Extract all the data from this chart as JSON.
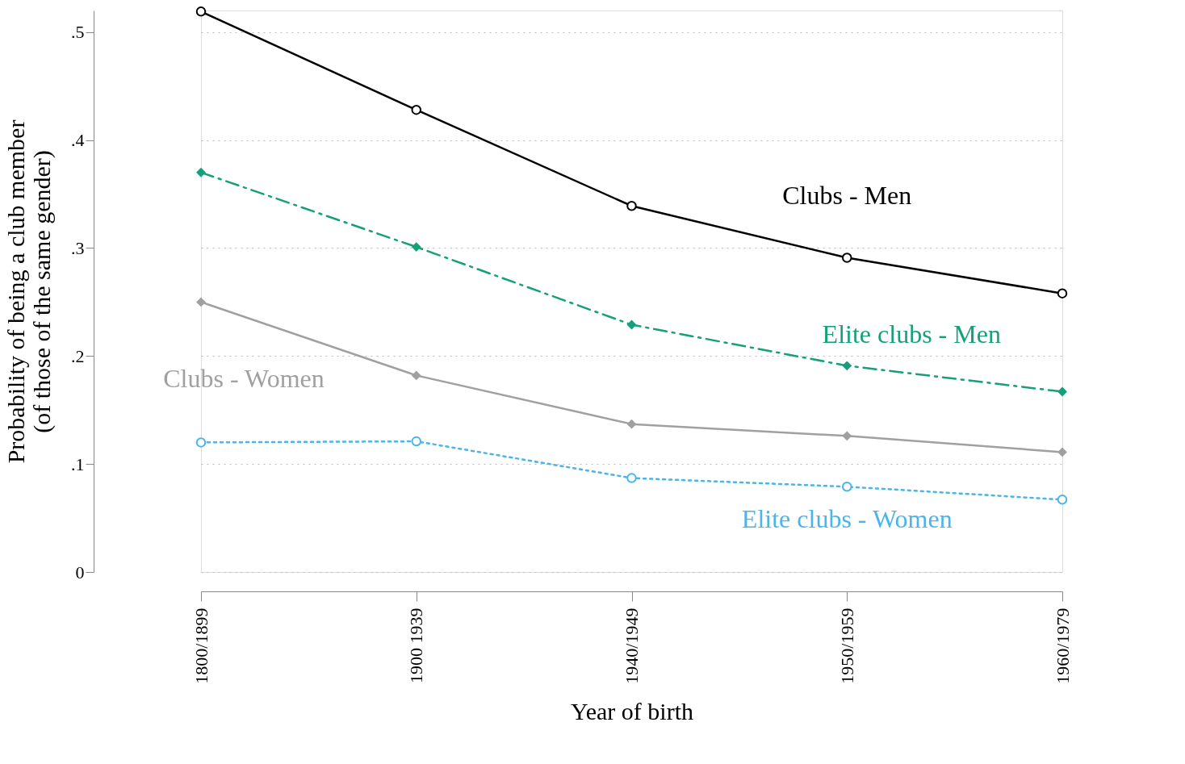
{
  "chart_data": {
    "type": "line",
    "xlabel": "Year of birth",
    "ylabel": "Probability of being a club member\n(of those of the same gender)",
    "categories": [
      "1800/1899",
      "1900 1939",
      "1940/1949",
      "1950/1959",
      "1960/1979"
    ],
    "series": [
      {
        "name": "Clubs - Men",
        "color": "#000000",
        "marker": "circle",
        "line_style": "solid",
        "values": [
          0.519,
          0.428,
          0.339,
          0.291,
          0.258
        ]
      },
      {
        "name": "Elite clubs - Men",
        "color": "#16a07a",
        "marker": "diamond",
        "line_style": "dashed",
        "values": [
          0.37,
          0.301,
          0.229,
          0.191,
          0.167
        ]
      },
      {
        "name": "Clubs - Women",
        "color": "#a0a0a0",
        "marker": "diamond",
        "line_style": "solid",
        "values": [
          0.25,
          0.182,
          0.137,
          0.126,
          0.111
        ]
      },
      {
        "name": "Elite clubs - Women",
        "color": "#4bb4ea",
        "marker": "circle",
        "line_style": "dotted",
        "values": [
          0.12,
          0.121,
          0.087,
          0.079,
          0.067
        ]
      }
    ],
    "ylim": [
      0,
      0.52
    ],
    "yticks": [
      0,
      {
        "value": 0.1,
        "label": ".1"
      },
      {
        "value": 0.2,
        "label": ".2"
      },
      {
        "value": 0.3,
        "label": ".3"
      },
      {
        "value": 0.4,
        "label": ".4"
      },
      {
        "value": 0.5,
        "label": ".5"
      }
    ],
    "grid": "y"
  }
}
